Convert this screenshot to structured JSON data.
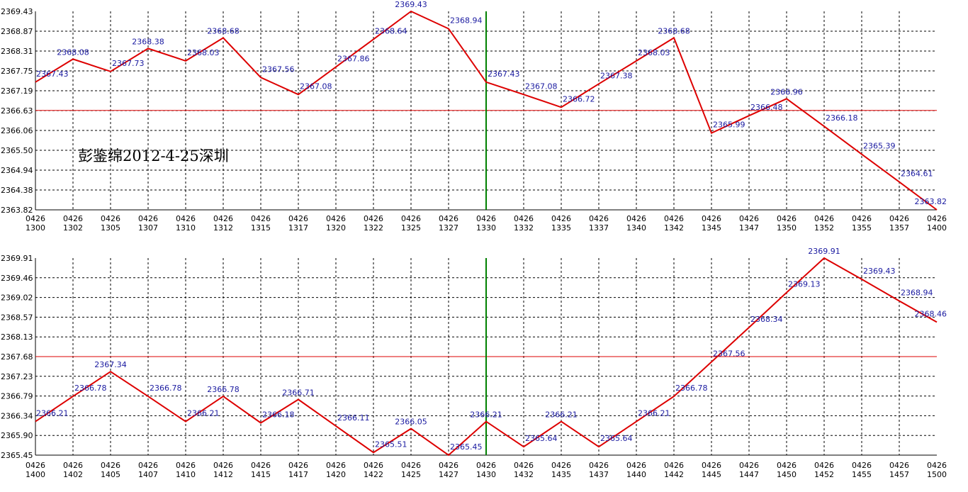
{
  "watermark": "彭鉴绵2012-4-25深圳",
  "colors": {
    "line": "#dd0000",
    "reference": "#dd0000",
    "marker": "#008000",
    "grid": "#000000",
    "label": "#1a1aa0"
  },
  "chart_data": [
    {
      "type": "line",
      "grid": true,
      "ylim": [
        2363.82,
        2369.43
      ],
      "yticks": [
        "2369.43",
        "2368.87",
        "2368.31",
        "2367.75",
        "2367.19",
        "2366.63",
        "2366.06",
        "2365.50",
        "2364.94",
        "2364.38",
        "2363.82"
      ],
      "reference_y": 2366.63,
      "marker_x": "0426 1330",
      "x": [
        "0426 1300",
        "0426 1302",
        "0426 1305",
        "0426 1307",
        "0426 1310",
        "0426 1312",
        "0426 1315",
        "0426 1317",
        "0426 1320",
        "0426 1322",
        "0426 1325",
        "0426 1327",
        "0426 1330",
        "0426 1332",
        "0426 1335",
        "0426 1337",
        "0426 1340",
        "0426 1342",
        "0426 1345",
        "0426 1347",
        "0426 1350",
        "0426 1352",
        "0426 1355",
        "0426 1357",
        "0426 1400"
      ],
      "x_top": [
        "0426",
        "0426",
        "0426",
        "0426",
        "0426",
        "0426",
        "0426",
        "0426",
        "0426",
        "0426",
        "0426",
        "0426",
        "0426",
        "0426",
        "0426",
        "0426",
        "0426",
        "0426",
        "0426",
        "0426",
        "0426",
        "0426",
        "0426",
        "0426",
        "0426"
      ],
      "x_bottom": [
        "1300",
        "1302",
        "1305",
        "1307",
        "1310",
        "1312",
        "1315",
        "1317",
        "1320",
        "1322",
        "1325",
        "1327",
        "1330",
        "1332",
        "1335",
        "1337",
        "1340",
        "1342",
        "1345",
        "1347",
        "1350",
        "1352",
        "1355",
        "1357",
        "1400"
      ],
      "values": [
        2367.43,
        2368.08,
        2367.73,
        2368.38,
        2368.03,
        2368.68,
        2367.56,
        2367.08,
        2367.86,
        2368.64,
        2369.43,
        2368.94,
        2367.43,
        2367.08,
        2366.72,
        2367.38,
        2368.03,
        2368.68,
        2365.99,
        2366.48,
        2366.96,
        2366.18,
        2365.39,
        2364.61,
        2363.82
      ],
      "labels": [
        "2367.43",
        "2368.08",
        "2367.73",
        "2368.38",
        "2368.03",
        "2368.68",
        "2367.56",
        "2367.08",
        "2367.86",
        "2368.64",
        "2369.43",
        "2368.94",
        "2367.43",
        "2367.08",
        "2366.72",
        "2367.38",
        "2368.03",
        "2368.68",
        "2365.99",
        "2366.48",
        "2366.96",
        "2366.18",
        "2365.39",
        "2364.61",
        "2363.82"
      ]
    },
    {
      "type": "line",
      "grid": true,
      "ylim": [
        2365.45,
        2369.91
      ],
      "yticks": [
        "2369.91",
        "2369.46",
        "2369.02",
        "2368.57",
        "2368.13",
        "2367.68",
        "2367.23",
        "2366.79",
        "2366.34",
        "2365.90",
        "2365.45"
      ],
      "reference_y": 2367.68,
      "marker_x": "0426 1430",
      "x": [
        "0426 1400",
        "0426 1402",
        "0426 1405",
        "0426 1407",
        "0426 1410",
        "0426 1412",
        "0426 1415",
        "0426 1417",
        "0426 1420",
        "0426 1422",
        "0426 1425",
        "0426 1427",
        "0426 1430",
        "0426 1432",
        "0426 1435",
        "0426 1437",
        "0426 1440",
        "0426 1442",
        "0426 1445",
        "0426 1447",
        "0426 1450",
        "0426 1452",
        "0426 1455",
        "0426 1457",
        "0426 1500"
      ],
      "x_top": [
        "0426",
        "0426",
        "0426",
        "0426",
        "0426",
        "0426",
        "0426",
        "0426",
        "0426",
        "0426",
        "0426",
        "0426",
        "0426",
        "0426",
        "0426",
        "0426",
        "0426",
        "0426",
        "0426",
        "0426",
        "0426",
        "0426",
        "0426",
        "0426",
        "0426"
      ],
      "x_bottom": [
        "1400",
        "1402",
        "1405",
        "1407",
        "1410",
        "1412",
        "1415",
        "1417",
        "1420",
        "1422",
        "1425",
        "1427",
        "1430",
        "1432",
        "1435",
        "1437",
        "1440",
        "1442",
        "1445",
        "1447",
        "1450",
        "1452",
        "1455",
        "1457",
        "1500"
      ],
      "values": [
        2366.21,
        2366.78,
        2367.34,
        2366.78,
        2366.21,
        2366.78,
        2366.18,
        2366.71,
        2366.11,
        2365.51,
        2366.05,
        2365.45,
        2366.21,
        2365.64,
        2366.21,
        2365.64,
        2366.21,
        2366.78,
        2367.56,
        2368.34,
        2369.13,
        2369.91,
        2369.43,
        2368.94,
        2368.46
      ],
      "labels": [
        "2366.21",
        "2366.78",
        "2367.34",
        "2366.78",
        "2366.21",
        "2366.78",
        "2366.18",
        "2366.71",
        "2366.11",
        "2365.51",
        "2366.05",
        "2365.45",
        "2366.21",
        "2365.64",
        "2366.21",
        "2365.64",
        "2366.21",
        "2366.78",
        "2367.56",
        "2368.34",
        "2369.13",
        "2369.91",
        "2369.43",
        "2368.94",
        "2368.46"
      ]
    }
  ]
}
